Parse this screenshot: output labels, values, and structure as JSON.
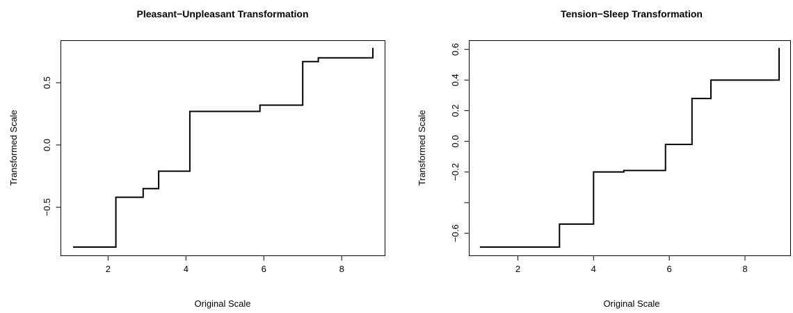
{
  "chart_data": [
    {
      "type": "line",
      "step": true,
      "title": "Pleasant−Unpleasant Transformation",
      "xlabel": "Original Scale",
      "ylabel": "Transformed Scale",
      "xlim": [
        1.1,
        8.8
      ],
      "ylim": [
        -0.82,
        0.78
      ],
      "x_ticks": [
        {
          "value": 2,
          "label": "2"
        },
        {
          "value": 4,
          "label": "4"
        },
        {
          "value": 6,
          "label": "6"
        },
        {
          "value": 8,
          "label": "8"
        }
      ],
      "y_ticks": [
        {
          "value": -0.5,
          "label": "−0.5"
        },
        {
          "value": 0,
          "label": "0.0"
        },
        {
          "value": 0.5,
          "label": "0.5"
        }
      ],
      "grid": false,
      "points": [
        {
          "x": 1.1,
          "y": -0.82
        },
        {
          "x": 2.2,
          "y": -0.82
        },
        {
          "x": 2.2,
          "y": -0.42
        },
        {
          "x": 2.9,
          "y": -0.42
        },
        {
          "x": 2.9,
          "y": -0.35
        },
        {
          "x": 3.3,
          "y": -0.35
        },
        {
          "x": 3.3,
          "y": -0.21
        },
        {
          "x": 4.1,
          "y": -0.21
        },
        {
          "x": 4.1,
          "y": 0.27
        },
        {
          "x": 5.9,
          "y": 0.27
        },
        {
          "x": 5.9,
          "y": 0.32
        },
        {
          "x": 7.0,
          "y": 0.32
        },
        {
          "x": 7.0,
          "y": 0.67
        },
        {
          "x": 7.4,
          "y": 0.67
        },
        {
          "x": 7.4,
          "y": 0.7
        },
        {
          "x": 8.8,
          "y": 0.7
        },
        {
          "x": 8.8,
          "y": 0.78
        }
      ]
    },
    {
      "type": "line",
      "step": true,
      "title": "Tension−Sleep Transformation",
      "xlabel": "Original Scale",
      "ylabel": "Transformed Scale",
      "xlim": [
        1.0,
        8.9
      ],
      "ylim": [
        -0.69,
        0.61
      ],
      "x_ticks": [
        {
          "value": 2,
          "label": "2"
        },
        {
          "value": 4,
          "label": "4"
        },
        {
          "value": 6,
          "label": "6"
        },
        {
          "value": 8,
          "label": "8"
        }
      ],
      "y_ticks": [
        {
          "value": -0.6,
          "label": "−0.6"
        },
        {
          "value": -0.4,
          "label": ""
        },
        {
          "value": -0.2,
          "label": "−0.2"
        },
        {
          "value": 0,
          "label": "0.0"
        },
        {
          "value": 0.2,
          "label": "0.2"
        },
        {
          "value": 0.4,
          "label": "0.4"
        },
        {
          "value": 0.6,
          "label": "0.6"
        }
      ],
      "grid": false,
      "points": [
        {
          "x": 1.0,
          "y": -0.69
        },
        {
          "x": 3.1,
          "y": -0.69
        },
        {
          "x": 3.1,
          "y": -0.54
        },
        {
          "x": 4.0,
          "y": -0.54
        },
        {
          "x": 4.0,
          "y": -0.2
        },
        {
          "x": 4.8,
          "y": -0.2
        },
        {
          "x": 4.8,
          "y": -0.19
        },
        {
          "x": 5.9,
          "y": -0.19
        },
        {
          "x": 5.9,
          "y": -0.02
        },
        {
          "x": 6.6,
          "y": -0.02
        },
        {
          "x": 6.6,
          "y": 0.28
        },
        {
          "x": 7.1,
          "y": 0.28
        },
        {
          "x": 7.1,
          "y": 0.4
        },
        {
          "x": 8.9,
          "y": 0.4
        },
        {
          "x": 8.9,
          "y": 0.61
        }
      ]
    }
  ]
}
